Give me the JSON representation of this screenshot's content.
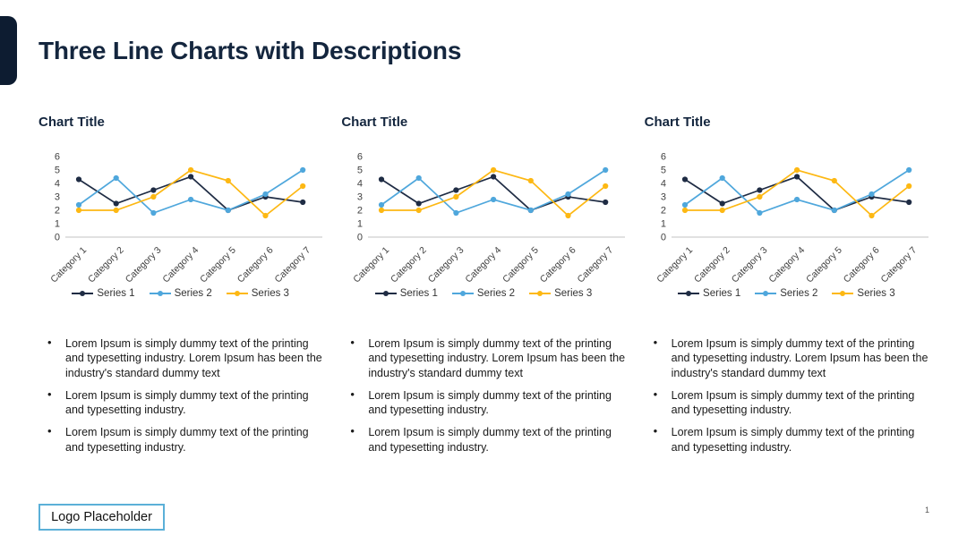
{
  "slide": {
    "title": "Three Line Charts with Descriptions",
    "page_number": "1",
    "logo_placeholder": "Logo Placeholder"
  },
  "colors": {
    "title_navy": "#14263e",
    "side_tab_navy": "#0d1c31",
    "series1_navy": "#1f2c44",
    "series2_blue": "#4fa7dc",
    "series3_yellow": "#fdb813",
    "axis_text": "#404040",
    "axis_line": "#c3c3c3",
    "logo_border_blue": "#5bb0d8",
    "body_text": "#1a1a1a"
  },
  "columns": [
    {
      "chart_title": "Chart Title",
      "bullets": [
        "Lorem Ipsum is simply dummy text of the printing and typesetting industry. Lorem Ipsum has been the industry's standard dummy text",
        "Lorem Ipsum is simply dummy text of the printing and typesetting industry.",
        "Lorem Ipsum is simply dummy text of the printing and typesetting industry."
      ]
    },
    {
      "chart_title": "Chart Title",
      "bullets": [
        "Lorem Ipsum is simply dummy text of the printing and typesetting industry. Lorem Ipsum has been the industry's standard dummy text",
        "Lorem Ipsum is simply dummy text of the printing and typesetting industry.",
        "Lorem Ipsum is simply dummy text of the printing and typesetting industry."
      ]
    },
    {
      "chart_title": "Chart Title",
      "bullets": [
        "Lorem Ipsum is simply dummy text of the printing and typesetting industry. Lorem Ipsum has been the industry's standard dummy text",
        "Lorem Ipsum is simply dummy text of the printing and typesetting industry.",
        "Lorem Ipsum is simply dummy text of the printing and typesetting industry."
      ]
    }
  ],
  "chart_data": [
    {
      "type": "line",
      "title": "Chart Title",
      "categories": [
        "Category 1",
        "Category 2",
        "Category 3",
        "Category 4",
        "Category 5",
        "Category 6",
        "Category 7"
      ],
      "series": [
        {
          "name": "Series 1",
          "color": "#1f2c44",
          "values": [
            4.3,
            2.5,
            3.5,
            4.5,
            2.0,
            3.0,
            2.6
          ]
        },
        {
          "name": "Series 2",
          "color": "#4fa7dc",
          "values": [
            2.4,
            4.4,
            1.8,
            2.8,
            2.0,
            3.2,
            5.0
          ]
        },
        {
          "name": "Series 3",
          "color": "#fdb813",
          "values": [
            2.0,
            2.0,
            3.0,
            5.0,
            4.2,
            1.6,
            3.8
          ]
        }
      ],
      "xlabel": "",
      "ylabel": "",
      "ylim": [
        0,
        6
      ],
      "yticks": [
        0,
        1,
        2,
        3,
        4,
        5,
        6
      ],
      "grid": false,
      "legend_position": "bottom"
    },
    {
      "type": "line",
      "title": "Chart Title",
      "categories": [
        "Category 1",
        "Category 2",
        "Category 3",
        "Category 4",
        "Category 5",
        "Category 6",
        "Category 7"
      ],
      "series": [
        {
          "name": "Series 1",
          "color": "#1f2c44",
          "values": [
            4.3,
            2.5,
            3.5,
            4.5,
            2.0,
            3.0,
            2.6
          ]
        },
        {
          "name": "Series 2",
          "color": "#4fa7dc",
          "values": [
            2.4,
            4.4,
            1.8,
            2.8,
            2.0,
            3.2,
            5.0
          ]
        },
        {
          "name": "Series 3",
          "color": "#fdb813",
          "values": [
            2.0,
            2.0,
            3.0,
            5.0,
            4.2,
            1.6,
            3.8
          ]
        }
      ],
      "xlabel": "",
      "ylabel": "",
      "ylim": [
        0,
        6
      ],
      "yticks": [
        0,
        1,
        2,
        3,
        4,
        5,
        6
      ],
      "grid": false,
      "legend_position": "bottom"
    },
    {
      "type": "line",
      "title": "Chart Title",
      "categories": [
        "Category 1",
        "Category 2",
        "Category 3",
        "Category 4",
        "Category 5",
        "Category 6",
        "Category 7"
      ],
      "series": [
        {
          "name": "Series 1",
          "color": "#1f2c44",
          "values": [
            4.3,
            2.5,
            3.5,
            4.5,
            2.0,
            3.0,
            2.6
          ]
        },
        {
          "name": "Series 2",
          "color": "#4fa7dc",
          "values": [
            2.4,
            4.4,
            1.8,
            2.8,
            2.0,
            3.2,
            5.0
          ]
        },
        {
          "name": "Series 3",
          "color": "#fdb813",
          "values": [
            2.0,
            2.0,
            3.0,
            5.0,
            4.2,
            1.6,
            3.8
          ]
        }
      ],
      "xlabel": "",
      "ylabel": "",
      "ylim": [
        0,
        6
      ],
      "yticks": [
        0,
        1,
        2,
        3,
        4,
        5,
        6
      ],
      "grid": false,
      "legend_position": "bottom"
    }
  ]
}
